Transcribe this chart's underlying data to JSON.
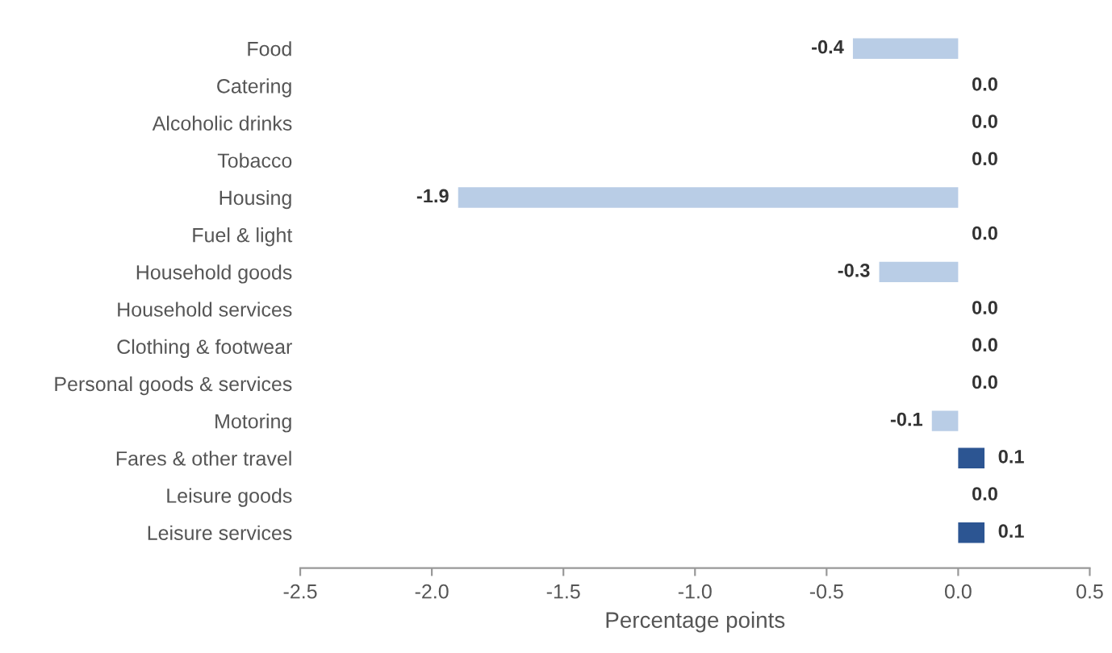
{
  "chart_data": {
    "type": "bar",
    "orientation": "horizontal",
    "categories": [
      "Food",
      "Catering",
      "Alcoholic drinks",
      "Tobacco",
      "Housing",
      "Fuel & light",
      "Household goods",
      "Household services",
      "Clothing & footwear",
      "Personal goods & services",
      "Motoring",
      "Fares & other travel",
      "Leisure goods",
      "Leisure services"
    ],
    "values": [
      -0.4,
      0.0,
      0.0,
      0.0,
      -1.9,
      0.0,
      -0.3,
      0.0,
      0.0,
      0.0,
      -0.1,
      0.1,
      0.0,
      0.1
    ],
    "colors": [
      "#b9cde6",
      "#b9cde6",
      "#b9cde6",
      "#b9cde6",
      "#b9cde6",
      "#b9cde6",
      "#b9cde6",
      "#b9cde6",
      "#b9cde6",
      "#b9cde6",
      "#b9cde6",
      "#2c5592",
      "#b9cde6",
      "#2c5592"
    ],
    "value_labels": [
      "-0.4",
      "0.0",
      "0.0",
      "0.0",
      "-1.9",
      "0.0",
      "-0.3",
      "0.0",
      "0.0",
      "0.0",
      "-0.1",
      "0.1",
      "0.0",
      "0.1"
    ],
    "xlabel": "Percentage points",
    "xlim": [
      -2.5,
      0.5
    ],
    "xticks": [
      {
        "value": -2.5,
        "label": "-2.5"
      },
      {
        "value": -2.0,
        "label": "-2.0"
      },
      {
        "value": -1.5,
        "label": "-1.5"
      },
      {
        "value": -1.0,
        "label": "-1.0"
      },
      {
        "value": -0.5,
        "label": "-0.5"
      },
      {
        "value": 0.0,
        "label": "0.0"
      },
      {
        "value": 0.5,
        "label": "0.5"
      }
    ],
    "grid": false,
    "legend": false
  }
}
